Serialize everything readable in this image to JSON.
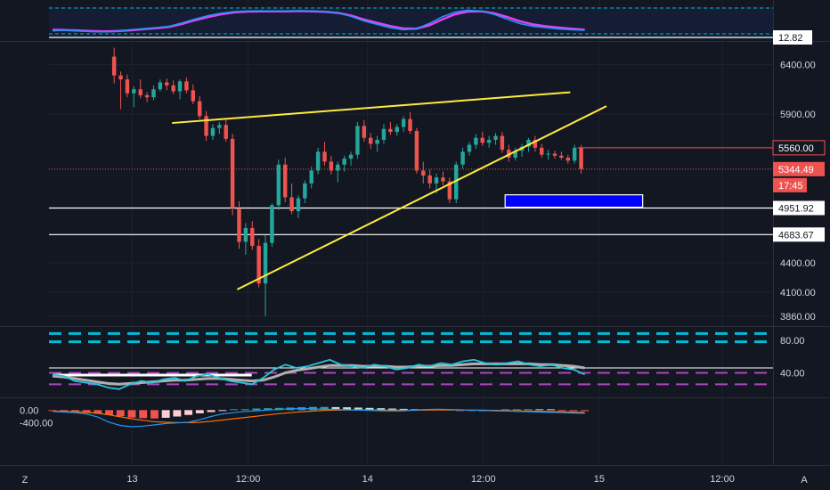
{
  "colors": {
    "background": "#131722",
    "grid": "#1e222d",
    "up": "#26a69a",
    "down": "#ef5350",
    "trendline": "#ffeb3b",
    "zone": "#0000ff",
    "stoch_k": "#2196f3",
    "stoch_d": "#e040fb",
    "rsi": "#26c6da",
    "rsi_ma": "#b0b0b0",
    "band_cyan": "#00bcd4",
    "band_purple": "#ab47bc",
    "macd": "#2196f3",
    "signal": "#ff6d00"
  },
  "chart_data": {
    "type": "candlestick",
    "main": {
      "y_ticks": [
        "6400.00",
        "5900.00",
        "5560.00",
        "5344.49",
        "4951.92",
        "4683.67",
        "4400.00",
        "4100.00",
        "3860.00"
      ],
      "price_badges": [
        {
          "label": "5560.00",
          "value": 5560,
          "style": "red-outline"
        },
        {
          "label": "5344.49",
          "value": 5344.49,
          "style": "red"
        },
        {
          "label": "17:45",
          "style": "red-countdown"
        },
        {
          "label": "4951.92",
          "value": 4951.92,
          "style": "white"
        },
        {
          "label": "4683.67",
          "value": 4683.67,
          "style": "white"
        }
      ],
      "horizontal_lines": [
        4951.92,
        4683.67
      ],
      "trendlines": [
        {
          "from": [
            0.17,
            5810
          ],
          "to": [
            0.72,
            6120
          ]
        },
        {
          "from": [
            0.26,
            4130
          ],
          "to": [
            0.77,
            5980
          ]
        }
      ],
      "zone": {
        "x0": 0.63,
        "x1": 0.82,
        "top": 5085,
        "bottom": 4960
      },
      "candles": [
        [
          6480,
          6570,
          6210,
          6290
        ],
        [
          6290,
          6330,
          5950,
          6250
        ],
        [
          6250,
          6300,
          6070,
          6110
        ],
        [
          6110,
          6180,
          5970,
          6150
        ],
        [
          6150,
          6250,
          6060,
          6090
        ],
        [
          6090,
          6120,
          6020,
          6070
        ],
        [
          6070,
          6190,
          6040,
          6150
        ],
        [
          6150,
          6250,
          6130,
          6220
        ],
        [
          6220,
          6260,
          6140,
          6190
        ],
        [
          6190,
          6240,
          6100,
          6130
        ],
        [
          6130,
          6250,
          6050,
          6230
        ],
        [
          6230,
          6270,
          6110,
          6140
        ],
        [
          6140,
          6200,
          6000,
          6030
        ],
        [
          6030,
          6080,
          5850,
          5880
        ],
        [
          5880,
          5930,
          5630,
          5680
        ],
        [
          5680,
          5800,
          5640,
          5760
        ],
        [
          5760,
          5820,
          5700,
          5790
        ],
        [
          5790,
          5850,
          5620,
          5650
        ],
        [
          5650,
          5700,
          4880,
          4950
        ],
        [
          4950,
          5020,
          4540,
          4610
        ],
        [
          4610,
          4800,
          4480,
          4750
        ],
        [
          4750,
          4820,
          4530,
          4570
        ],
        [
          4570,
          4640,
          4150,
          4190
        ],
        [
          4190,
          4680,
          3860,
          4600
        ],
        [
          4600,
          5000,
          4560,
          4980
        ],
        [
          4980,
          5440,
          4930,
          5390
        ],
        [
          5390,
          5460,
          5010,
          5060
        ],
        [
          5060,
          5200,
          4890,
          4920
        ],
        [
          4920,
          5080,
          4850,
          5050
        ],
        [
          5050,
          5230,
          5000,
          5200
        ],
        [
          5200,
          5370,
          5150,
          5330
        ],
        [
          5330,
          5560,
          5290,
          5520
        ],
        [
          5520,
          5620,
          5380,
          5420
        ],
        [
          5420,
          5480,
          5290,
          5330
        ],
        [
          5330,
          5420,
          5210,
          5390
        ],
        [
          5390,
          5480,
          5320,
          5450
        ],
        [
          5450,
          5520,
          5380,
          5490
        ],
        [
          5490,
          5820,
          5450,
          5780
        ],
        [
          5780,
          5840,
          5620,
          5660
        ],
        [
          5660,
          5710,
          5550,
          5600
        ],
        [
          5600,
          5680,
          5520,
          5640
        ],
        [
          5640,
          5800,
          5600,
          5750
        ],
        [
          5750,
          5820,
          5690,
          5720
        ],
        [
          5720,
          5800,
          5680,
          5770
        ],
        [
          5770,
          5880,
          5720,
          5850
        ],
        [
          5850,
          5920,
          5700,
          5730
        ],
        [
          5730,
          5760,
          5300,
          5330
        ],
        [
          5330,
          5420,
          5200,
          5280
        ],
        [
          5280,
          5340,
          5150,
          5200
        ],
        [
          5200,
          5300,
          5100,
          5260
        ],
        [
          5260,
          5320,
          5180,
          5220
        ],
        [
          5220,
          5260,
          5000,
          5040
        ],
        [
          5040,
          5420,
          5000,
          5390
        ],
        [
          5390,
          5560,
          5350,
          5520
        ],
        [
          5520,
          5620,
          5480,
          5590
        ],
        [
          5590,
          5700,
          5550,
          5660
        ],
        [
          5660,
          5720,
          5580,
          5610
        ],
        [
          5610,
          5680,
          5560,
          5640
        ],
        [
          5640,
          5710,
          5590,
          5680
        ],
        [
          5680,
          5720,
          5510,
          5540
        ],
        [
          5540,
          5590,
          5420,
          5460
        ],
        [
          5460,
          5560,
          5430,
          5530
        ],
        [
          5530,
          5600,
          5470,
          5570
        ],
        [
          5570,
          5660,
          5520,
          5640
        ],
        [
          5640,
          5680,
          5520,
          5560
        ],
        [
          5560,
          5600,
          5460,
          5490
        ],
        [
          5490,
          5540,
          5440,
          5500
        ],
        [
          5500,
          5530,
          5450,
          5480
        ],
        [
          5480,
          5520,
          5440,
          5460
        ],
        [
          5460,
          5490,
          5400,
          5430
        ],
        [
          5430,
          5590,
          5400,
          5560
        ],
        [
          5560,
          5590,
          5300,
          5344.49
        ]
      ]
    },
    "x_ticks": [
      {
        "label": "13",
        "pos": 0.115
      },
      {
        "label": "12:00",
        "pos": 0.275
      },
      {
        "label": "14",
        "pos": 0.44
      },
      {
        "label": "12:00",
        "pos": 0.6
      },
      {
        "label": "15",
        "pos": 0.76
      },
      {
        "label": "12:00",
        "pos": 0.93
      }
    ],
    "stoch_pane": {
      "badge": "12.82",
      "k": [
        18,
        20,
        17,
        15,
        14,
        16,
        22,
        26,
        30,
        35,
        48,
        62,
        75,
        84,
        90,
        92,
        93,
        92,
        92,
        93,
        92,
        90,
        85,
        72,
        55,
        42,
        30,
        22,
        25,
        45,
        70,
        88,
        95,
        92,
        80,
        62,
        45,
        35,
        30,
        25,
        22,
        20
      ],
      "d": [
        22,
        21,
        19,
        17,
        16,
        17,
        20,
        24,
        28,
        33,
        44,
        58,
        70,
        80,
        87,
        90,
        91,
        91,
        91,
        92,
        91,
        89,
        85,
        75,
        60,
        48,
        36,
        27,
        26,
        38,
        60,
        80,
        90,
        91,
        84,
        70,
        54,
        42,
        35,
        30,
        26,
        22
      ]
    },
    "rsi_pane": {
      "y_ticks": [
        "80.00",
        "40.00"
      ],
      "bands": [
        {
          "value": 88,
          "color": "cyan"
        },
        {
          "value": 78,
          "color": "cyan"
        },
        {
          "value": 40,
          "color": "purple"
        },
        {
          "value": 26,
          "color": "purple"
        }
      ],
      "reference": 46,
      "rsi": [
        38,
        36,
        30,
        28,
        26,
        22,
        20,
        26,
        30,
        28,
        32,
        34,
        30,
        36,
        38,
        34,
        30,
        28,
        26,
        34,
        44,
        50,
        46,
        48,
        52,
        56,
        50,
        48,
        46,
        50,
        48,
        44,
        46,
        50,
        48,
        52,
        50,
        54,
        56,
        52,
        50,
        52,
        54,
        50,
        48,
        50,
        46,
        44,
        38
      ],
      "rsi_ma": [
        36,
        35,
        33,
        31,
        29,
        27,
        26,
        27,
        28,
        29,
        30,
        31,
        31,
        32,
        33,
        33,
        32,
        31,
        30,
        31,
        35,
        40,
        43,
        45,
        47,
        49,
        49,
        49,
        48,
        48,
        48,
        47,
        47,
        48,
        48,
        49,
        49,
        50,
        51,
        51,
        51,
        51,
        51,
        51,
        50,
        50,
        49,
        48,
        46
      ]
    },
    "macd_pane": {
      "y_ticks": [
        "0.00",
        "-400.00"
      ],
      "hist": [
        -20,
        -30,
        -50,
        -70,
        -110,
        -150,
        -190,
        -230,
        -250,
        -260,
        -240,
        -200,
        -150,
        -100,
        -60,
        -20,
        10,
        30,
        50,
        60,
        70,
        80,
        90,
        100,
        100,
        95,
        90,
        80,
        70,
        60,
        50,
        40,
        30,
        20,
        10,
        0,
        -10,
        -20,
        -15,
        -5,
        5,
        10,
        15,
        10,
        0,
        -10,
        -20,
        -30
      ],
      "macd": [
        -40,
        -60,
        -80,
        -120,
        -220,
        -380,
        -480,
        -520,
        -500,
        -460,
        -420,
        -400,
        -380,
        -300,
        -200,
        -120,
        -80,
        -40,
        -20,
        0,
        20,
        40,
        50,
        40,
        30,
        20,
        10,
        0,
        -10,
        -20,
        -30,
        -20,
        0,
        20,
        30,
        20,
        10,
        0,
        -10,
        -20,
        -30,
        -40,
        -50,
        -60,
        -70,
        -80,
        -90,
        -100
      ],
      "signal": [
        -30,
        -40,
        -50,
        -70,
        -100,
        -150,
        -210,
        -270,
        -320,
        -360,
        -380,
        -390,
        -390,
        -380,
        -350,
        -310,
        -270,
        -230,
        -190,
        -150,
        -110,
        -80,
        -50,
        -30,
        -10,
        0,
        5,
        8,
        6,
        2,
        -3,
        -6,
        -4,
        0,
        4,
        6,
        5,
        2,
        -2,
        -8,
        -14,
        -20,
        -28,
        -36,
        -44,
        -52,
        -60,
        -70
      ]
    }
  },
  "footer": {
    "left_icon_label": "Z",
    "right_icon_label": "A"
  }
}
